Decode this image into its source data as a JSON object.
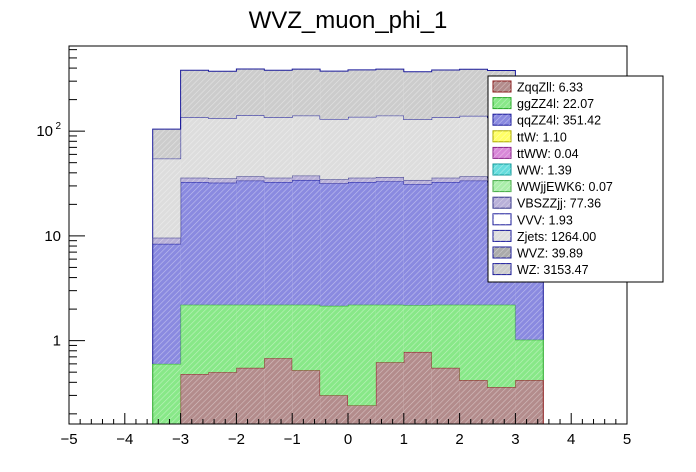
{
  "chart_data": {
    "type": "bar",
    "title": "WVZ_muon_phi_1",
    "xlabel": "",
    "ylabel": "",
    "stacked": true,
    "xlim": [
      -5,
      5
    ],
    "ylim": [
      0.16,
      650
    ],
    "yscale": "log",
    "x_ticks": [
      "−5",
      "−4",
      "−3",
      "−2",
      "−1",
      "0",
      "1",
      "2",
      "3",
      "4",
      "5"
    ],
    "y_ticks": [
      {
        "label": "1",
        "value": 1
      },
      {
        "label": "10",
        "value": 10
      },
      {
        "label": "10",
        "sup": "2",
        "value": 100
      }
    ],
    "bin_edges": [
      -3.5,
      -3,
      -2.5,
      -2,
      -1.5,
      -1,
      -0.5,
      0,
      0.5,
      1,
      1.5,
      2,
      2.5,
      3,
      3.5
    ],
    "series": [
      {
        "name": "ZqqZll",
        "legend": "ZqqZll: 6.33",
        "color": "#b38c8c",
        "edge": "#8a1a1a",
        "values": [
          0,
          0.48,
          0.5,
          0.55,
          0.68,
          0.52,
          0.3,
          0.24,
          0.62,
          0.78,
          0.55,
          0.42,
          0.36,
          0.42
        ]
      },
      {
        "name": "ggZZ4l",
        "legend": "ggZZ4l: 22.07",
        "color": "#88e888",
        "edge": "#27a827",
        "values": [
          0.6,
          1.72,
          1.7,
          1.65,
          1.52,
          1.68,
          1.85,
          1.96,
          1.58,
          1.4,
          1.65,
          1.78,
          1.84,
          0.6
        ]
      },
      {
        "name": "qqZZ4l",
        "legend": "qqZZ4l: 351.42",
        "color": "#8a8ae0",
        "edge": "#1a1a9a",
        "values": [
          7.8,
          30.5,
          30.0,
          31.5,
          30.5,
          32.0,
          29.5,
          30.5,
          31.0,
          29.0,
          30.5,
          31.5,
          30.5,
          7.8
        ]
      },
      {
        "name": "ttW",
        "legend": "ttW: 1.10",
        "color": "#ffff66",
        "edge": "#aaaa00",
        "values": []
      },
      {
        "name": "ttWW",
        "legend": "ttWW: 0.04",
        "color": "#d888d8",
        "edge": "#882288",
        "values": []
      },
      {
        "name": "WW",
        "legend": "WW: 1.39",
        "color": "#66dddd",
        "edge": "#119999",
        "values": []
      },
      {
        "name": "WWjjEWK6",
        "legend": "WWjjEWK6: 0.07",
        "color": "#aaeeaa",
        "edge": "#44aa44",
        "values": []
      },
      {
        "name": "VBSZZjj",
        "legend": "VBSZZjj: 77.36",
        "color": "#b8b0d8",
        "edge": "#333388",
        "values": [
          1.2,
          3.2,
          3.1,
          3.3,
          3.2,
          3.4,
          3.0,
          3.2,
          3.3,
          3.0,
          3.2,
          3.3,
          3.1,
          1.2
        ]
      },
      {
        "name": "VVV",
        "legend": "VVV: 1.93",
        "color": "#ffffff",
        "edge": "#1a1a9a",
        "values": []
      },
      {
        "name": "Zjets",
        "legend": "Zjets: 1264.00",
        "color": "#dddddd",
        "edge": "#1a1a9a",
        "values": [
          45,
          100,
          98,
          105,
          100,
          103,
          96,
          101,
          104,
          95,
          100,
          103,
          99,
          0
        ]
      },
      {
        "name": "WVZ",
        "legend": "WVZ: 39.89",
        "color": "#aaaaaa",
        "edge": "#1a1a9a",
        "values": []
      },
      {
        "name": "WZ",
        "legend": "WZ: 3153.47",
        "color": "#cccccc",
        "edge": "#1a1a9a",
        "values": [
          50,
          245,
          240,
          250,
          245,
          250,
          243,
          248,
          250,
          240,
          248,
          250,
          245,
          0
        ]
      }
    ],
    "legend_position": "top-right",
    "grid": false
  },
  "colors": {
    "frame": "#000000",
    "background": "#ffffff",
    "legend_border": "#000000"
  }
}
